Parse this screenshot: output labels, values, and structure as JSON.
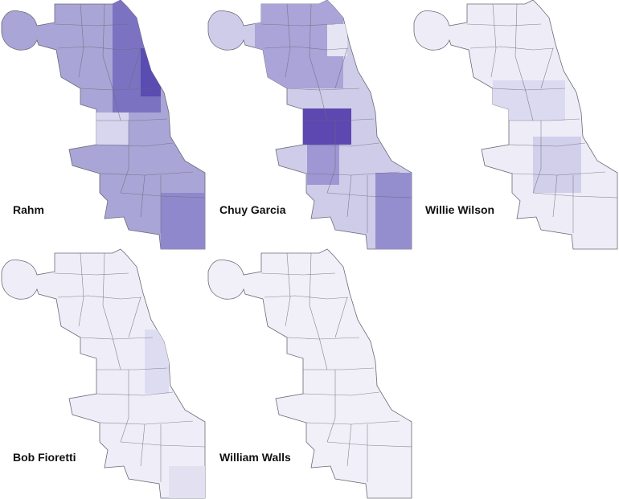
{
  "maps": [
    {
      "label": "Rahm"
    },
    {
      "label": "Chuy Garcia"
    },
    {
      "label": "Willie Wilson"
    },
    {
      "label": "Bob Fioretti"
    },
    {
      "label": "William Walls"
    }
  ]
}
